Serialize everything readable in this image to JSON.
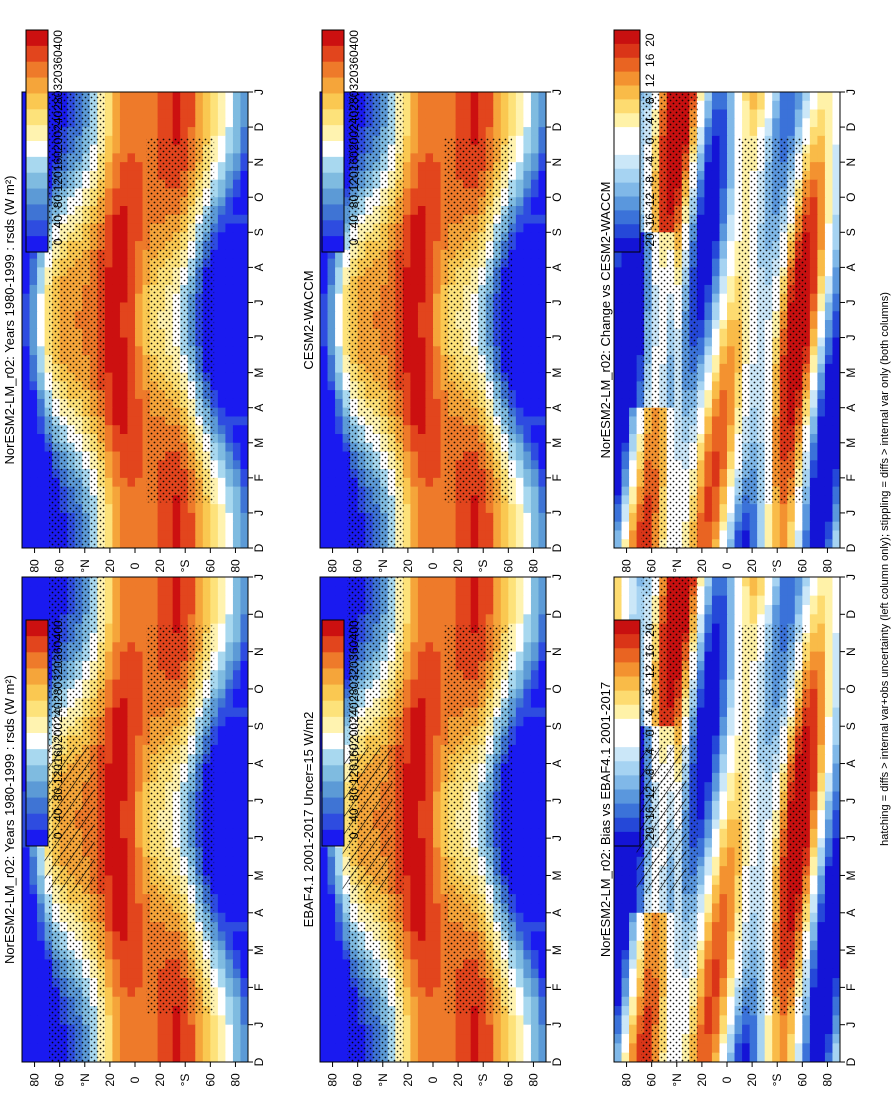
{
  "figure": {
    "caption": "hatching = diffs > internal var+obs uncertainty (left column only); stippling = diffs > internal var only (both columns)"
  },
  "chart_data": [
    {
      "type": "heatmap",
      "title": "NorESM2-LM_r02: Years 1980-1999 : rsds (W m²)",
      "x_ticks": [
        "D",
        "J",
        "F",
        "M",
        "A",
        "M",
        "J",
        "J",
        "A",
        "S",
        "O",
        "N",
        "D",
        "J"
      ],
      "y_ticks": [
        "80",
        "60",
        "°N",
        "20",
        "0",
        "20",
        "°S",
        "60",
        "80"
      ],
      "colorbar": [
        "400",
        "360",
        "320",
        "280",
        "240",
        "200",
        "160",
        "120",
        "80",
        "40",
        "0"
      ],
      "hatched": true,
      "stippled": true
    },
    {
      "type": "heatmap",
      "title": "NorESM2-LM_r02: Years 1980-1999 : rsds (W m²)",
      "x_ticks": [
        "D",
        "J",
        "F",
        "M",
        "A",
        "M",
        "J",
        "J",
        "A",
        "S",
        "O",
        "N",
        "D",
        "J"
      ],
      "y_ticks": [
        "80",
        "60",
        "°N",
        "20",
        "0",
        "20",
        "°S",
        "60",
        "80"
      ],
      "colorbar": [
        "400",
        "360",
        "320",
        "280",
        "240",
        "200",
        "160",
        "120",
        "80",
        "40",
        "0"
      ],
      "hatched": false,
      "stippled": true
    },
    {
      "type": "heatmap",
      "title": "EBAF4.1 2001-2017 Uncer=15 W/m2",
      "x_ticks": [
        "D",
        "J",
        "F",
        "M",
        "A",
        "M",
        "J",
        "J",
        "A",
        "S",
        "O",
        "N",
        "D",
        "J"
      ],
      "y_ticks": [
        "80",
        "60",
        "°N",
        "20",
        "0",
        "20",
        "°S",
        "60",
        "80"
      ],
      "colorbar": [
        "400",
        "360",
        "320",
        "280",
        "240",
        "200",
        "160",
        "120",
        "80",
        "40",
        "0"
      ],
      "hatched": true,
      "stippled": true
    },
    {
      "type": "heatmap",
      "title": "CESM2-WACCM",
      "x_ticks": [
        "D",
        "J",
        "F",
        "M",
        "A",
        "M",
        "J",
        "J",
        "A",
        "S",
        "O",
        "N",
        "D",
        "J"
      ],
      "y_ticks": [
        "80",
        "60",
        "°N",
        "20",
        "0",
        "20",
        "°S",
        "60",
        "80"
      ],
      "colorbar": [
        "400",
        "360",
        "320",
        "280",
        "240",
        "200",
        "160",
        "120",
        "80",
        "40",
        "0"
      ],
      "hatched": false,
      "stippled": true
    },
    {
      "type": "heatmap",
      "title": "NorESM2-LM_r02: Bias vs EBAF4.1 2001-2017",
      "x_ticks": [
        "D",
        "J",
        "F",
        "M",
        "A",
        "M",
        "J",
        "J",
        "A",
        "S",
        "O",
        "N",
        "D",
        "J"
      ],
      "y_ticks": [
        "80",
        "60",
        "°N",
        "20",
        "0",
        "20",
        "°S",
        "60",
        "80"
      ],
      "colorbar": [
        "20",
        "16",
        "12",
        "8",
        "4",
        "0",
        "-4",
        "-8",
        "-12",
        "-16",
        "-20"
      ],
      "hatched": true,
      "stippled": true
    },
    {
      "type": "heatmap",
      "title": "NorESM2-LM_r02: Change vs CESM2-WACCM",
      "x_ticks": [
        "D",
        "J",
        "F",
        "M",
        "A",
        "M",
        "J",
        "J",
        "A",
        "S",
        "O",
        "N",
        "D",
        "J"
      ],
      "y_ticks": [
        "80",
        "60",
        "°N",
        "20",
        "0",
        "20",
        "°S",
        "60",
        "80"
      ],
      "colorbar": [
        "20",
        "16",
        "12",
        "8",
        "4",
        "0",
        "-4",
        "-8",
        "-12",
        "-16",
        "-20"
      ],
      "hatched": false,
      "stippled": true
    }
  ]
}
